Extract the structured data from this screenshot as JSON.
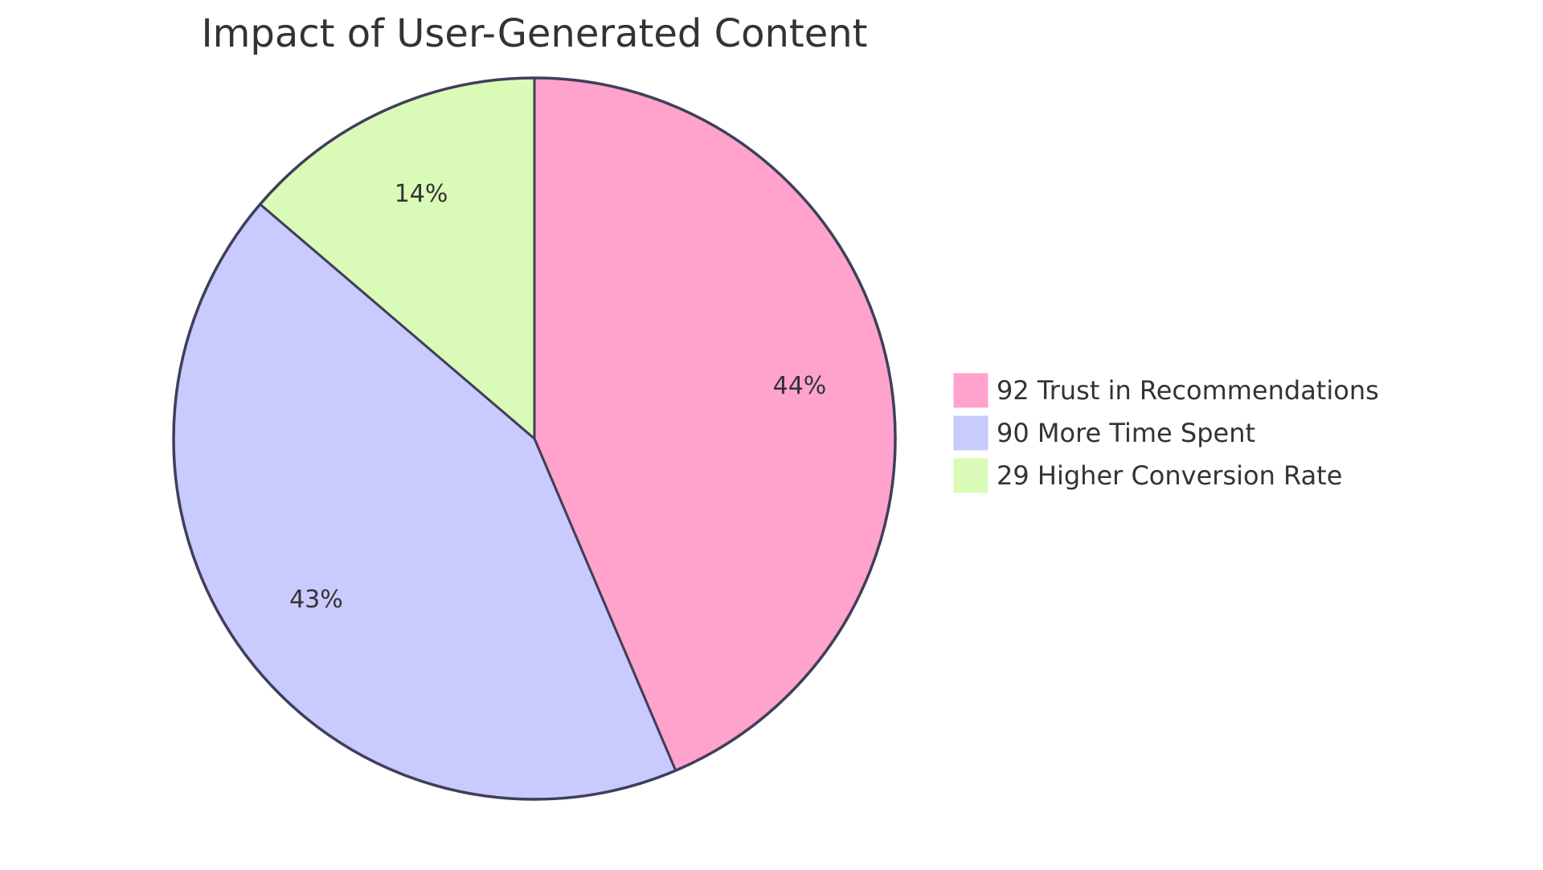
{
  "chart_data": {
    "type": "pie",
    "title": "Impact of User-Generated Content",
    "slices": [
      {
        "label": "Trust in Recommendations",
        "value": 92,
        "legend": "92 Trust in Recommendations",
        "percent_label": "44%",
        "color": "#FFA3CD"
      },
      {
        "label": "More Time Spent",
        "value": 90,
        "legend": "90 More Time Spent",
        "percent_label": "43%",
        "color": "#C9CAFE"
      },
      {
        "label": "Higher Conversion Rate",
        "value": 29,
        "legend": "29 Higher Conversion Rate",
        "percent_label": "14%",
        "color": "#DAFBB8"
      }
    ],
    "legend_position": "right",
    "start_angle": "top, clockwise"
  }
}
